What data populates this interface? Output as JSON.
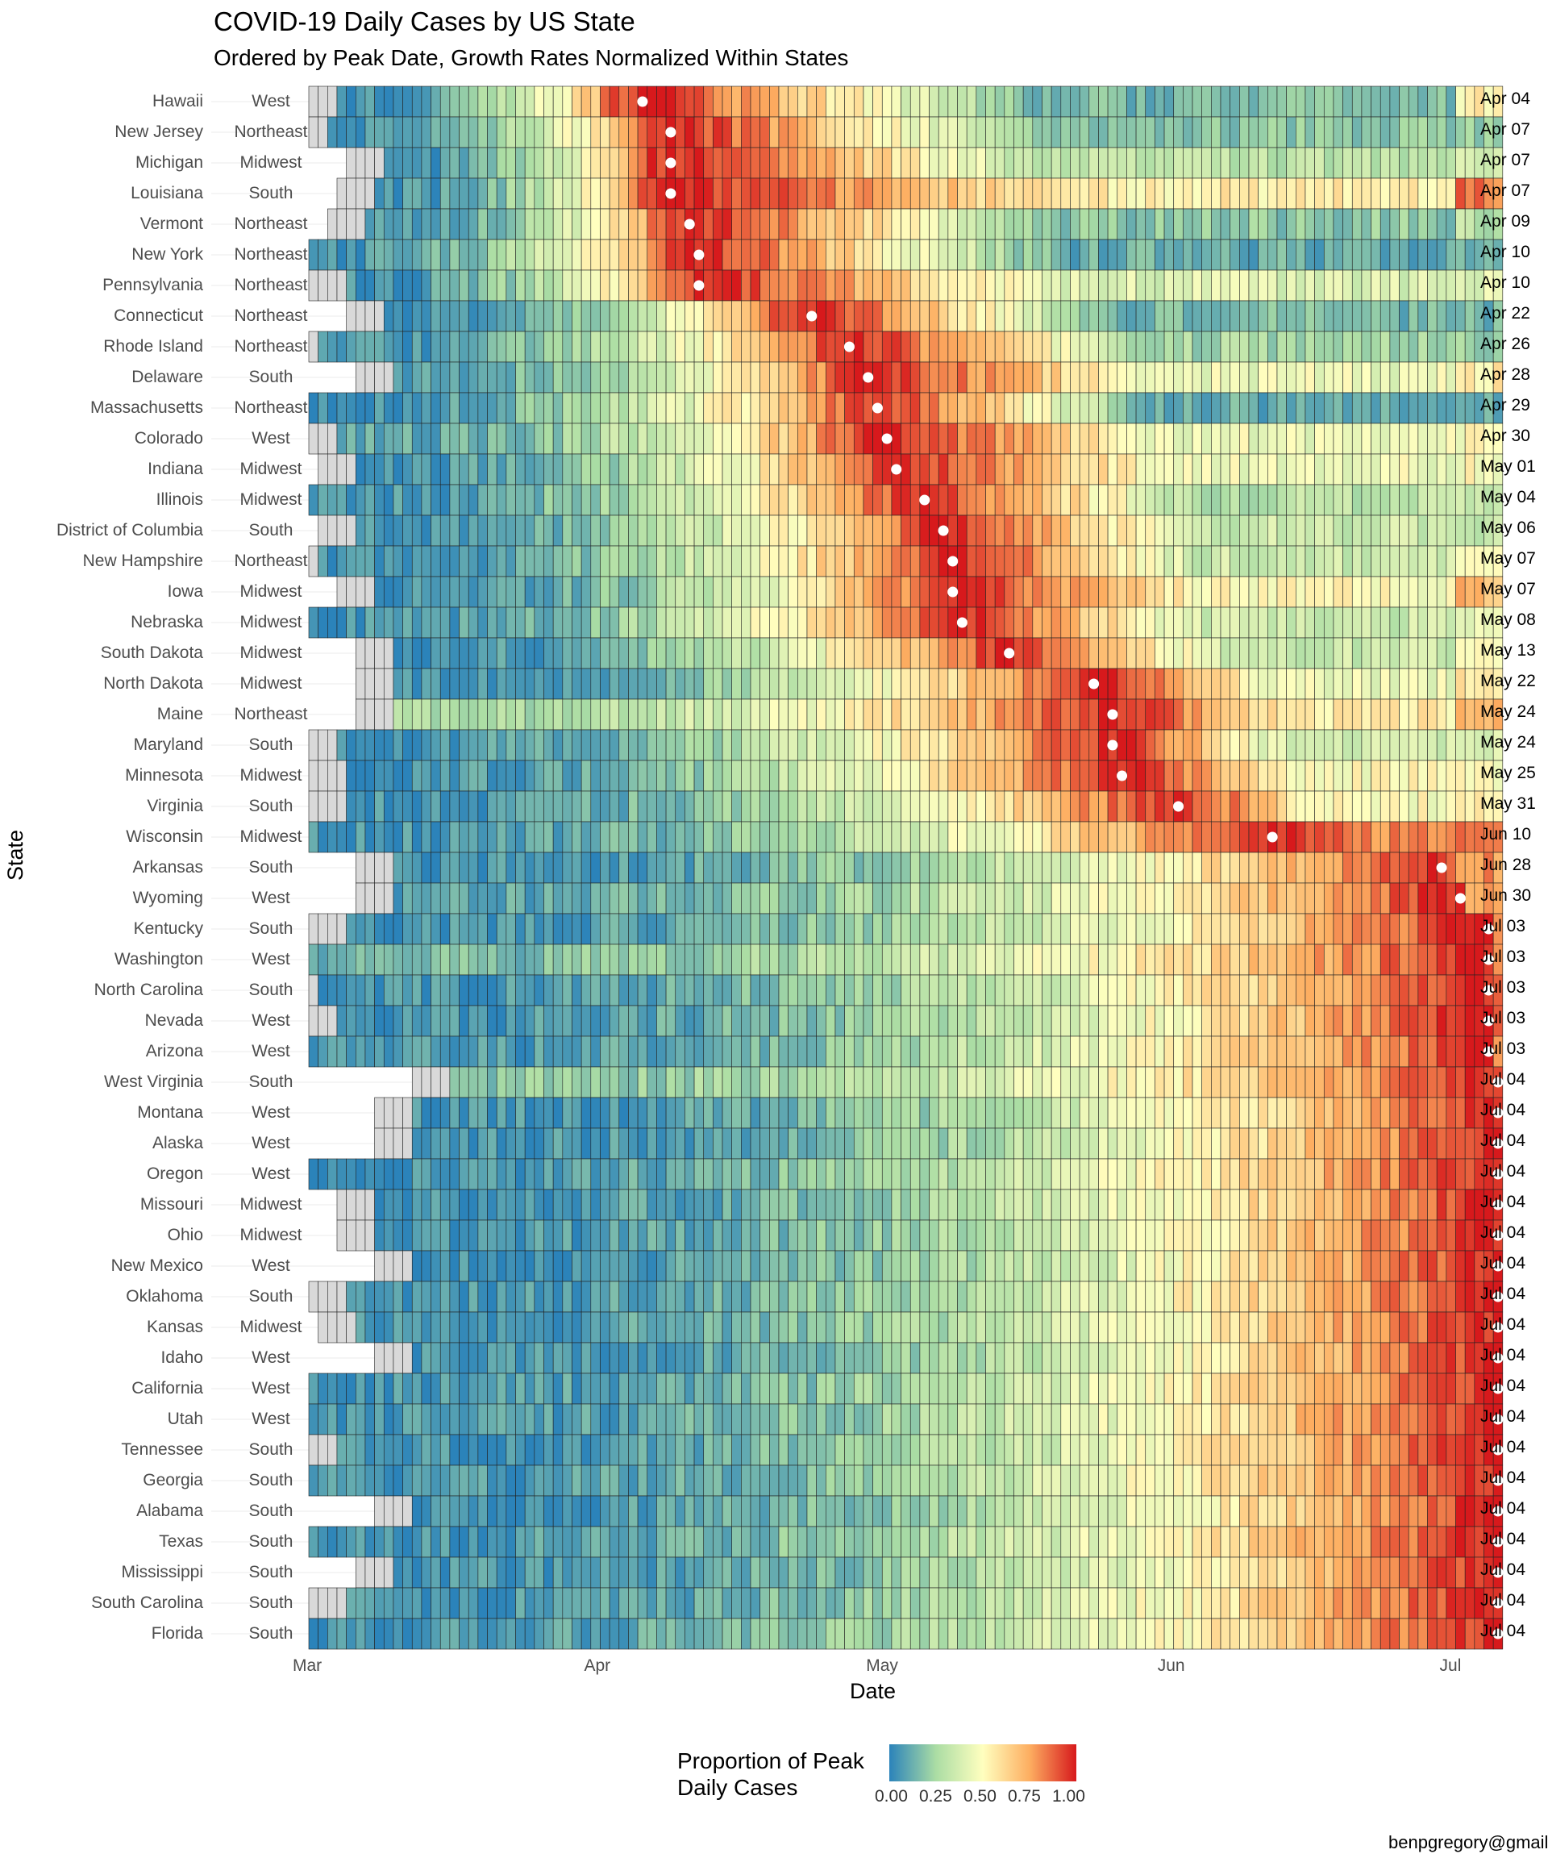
{
  "chart_data": {
    "type": "heatmap",
    "title": "COVID-19 Daily Cases by US State",
    "subtitle": "Ordered by Peak Date, Growth Rates Normalized Within States",
    "xlabel": "Date",
    "ylabel": "State",
    "x_ticks": [
      "Mar",
      "Apr",
      "May",
      "Jun",
      "Jul"
    ],
    "x_range": [
      "Feb 29",
      "Jul 04"
    ],
    "legend": {
      "title_line1": "Proportion of Peak",
      "title_line2": "Daily Cases",
      "ticks": [
        "0.00",
        "0.25",
        "0.50",
        "0.75",
        "1.00"
      ],
      "colors": [
        "#2b83ba",
        "#abdda4",
        "#ffffbf",
        "#fdae61",
        "#d7191c"
      ],
      "range": [
        0,
        1
      ]
    },
    "grey_color": "#d9d9d9",
    "rows": [
      {
        "state": "Hawaii",
        "region": "West",
        "peak": "Apr 04",
        "peak_day": 35,
        "first_case_day": 3,
        "start": 0.05,
        "late": 0.15,
        "end_value": 0.55
      },
      {
        "state": "New Jersey",
        "region": "Northeast",
        "peak": "Apr 07",
        "peak_day": 38,
        "first_case_day": 2,
        "start": 0.05,
        "late": 0.2,
        "end_value": 0.05
      },
      {
        "state": "Michigan",
        "region": "Midwest",
        "peak": "Apr 07",
        "peak_day": 38,
        "first_case_day": 8,
        "start": 0.05,
        "late": 0.3,
        "end_value": 0.35
      },
      {
        "state": "Louisiana",
        "region": "South",
        "peak": "Apr 07",
        "peak_day": 38,
        "first_case_day": 7,
        "start": 0.05,
        "late": 0.55,
        "end_value": 0.85
      },
      {
        "state": "Vermont",
        "region": "Northeast",
        "peak": "Apr 09",
        "peak_day": 40,
        "first_case_day": 6,
        "start": 0.05,
        "late": 0.2,
        "end_value": 0.3
      },
      {
        "state": "New York",
        "region": "Northeast",
        "peak": "Apr 10",
        "peak_day": 41,
        "first_case_day": 0,
        "start": 0.05,
        "late": 0.12,
        "end_value": 0.1
      },
      {
        "state": "Pennsylvania",
        "region": "Northeast",
        "peak": "Apr 10",
        "peak_day": 41,
        "first_case_day": 4,
        "start": 0.05,
        "late": 0.4,
        "end_value": 0.4
      },
      {
        "state": "Connecticut",
        "region": "Northeast",
        "peak": "Apr 22",
        "peak_day": 53,
        "first_case_day": 8,
        "start": 0.05,
        "late": 0.15,
        "end_value": 0.1
      },
      {
        "state": "Rhode Island",
        "region": "Northeast",
        "peak": "Apr 26",
        "peak_day": 57,
        "first_case_day": 1,
        "start": 0.05,
        "late": 0.25,
        "end_value": 0.25
      },
      {
        "state": "Delaware",
        "region": "South",
        "peak": "Apr 28",
        "peak_day": 59,
        "first_case_day": 9,
        "start": 0.1,
        "late": 0.45,
        "end_value": 0.55
      },
      {
        "state": "Massachusetts",
        "region": "Northeast",
        "peak": "Apr 29",
        "peak_day": 60,
        "first_case_day": 0,
        "start": 0.05,
        "late": 0.12,
        "end_value": 0.08
      },
      {
        "state": "Colorado",
        "region": "West",
        "peak": "Apr 30",
        "peak_day": 61,
        "first_case_day": 3,
        "start": 0.1,
        "late": 0.45,
        "end_value": 0.5
      },
      {
        "state": "Indiana",
        "region": "Midwest",
        "peak": "May 01",
        "peak_day": 62,
        "first_case_day": 5,
        "start": 0.05,
        "late": 0.45,
        "end_value": 0.5
      },
      {
        "state": "Illinois",
        "region": "Midwest",
        "peak": "May 04",
        "peak_day": 65,
        "first_case_day": 0,
        "start": 0.05,
        "late": 0.3,
        "end_value": 0.35
      },
      {
        "state": "District of Columbia",
        "region": "South",
        "peak": "May 06",
        "peak_day": 67,
        "first_case_day": 5,
        "start": 0.05,
        "late": 0.35,
        "end_value": 0.3
      },
      {
        "state": "New Hampshire",
        "region": "Northeast",
        "peak": "May 07",
        "peak_day": 68,
        "first_case_day": 1,
        "start": 0.05,
        "late": 0.35,
        "end_value": 0.45
      },
      {
        "state": "Iowa",
        "region": "Midwest",
        "peak": "May 07",
        "peak_day": 68,
        "first_case_day": 7,
        "start": 0.05,
        "late": 0.5,
        "end_value": 0.7
      },
      {
        "state": "Nebraska",
        "region": "Midwest",
        "peak": "May 08",
        "peak_day": 69,
        "first_case_day": 0,
        "start": 0.05,
        "late": 0.35,
        "end_value": 0.4
      },
      {
        "state": "South Dakota",
        "region": "Midwest",
        "peak": "May 13",
        "peak_day": 74,
        "first_case_day": 9,
        "start": 0.05,
        "late": 0.35,
        "end_value": 0.45
      },
      {
        "state": "North Dakota",
        "region": "Midwest",
        "peak": "May 22",
        "peak_day": 83,
        "first_case_day": 9,
        "start": 0.05,
        "late": 0.45,
        "end_value": 0.55
      },
      {
        "state": "Maine",
        "region": "Northeast",
        "peak": "May 24",
        "peak_day": 85,
        "first_case_day": 9,
        "start": 0.25,
        "late": 0.55,
        "end_value": 0.75
      },
      {
        "state": "Maryland",
        "region": "South",
        "peak": "May 24",
        "peak_day": 85,
        "first_case_day": 3,
        "start": 0.05,
        "late": 0.35,
        "end_value": 0.4
      },
      {
        "state": "Minnesota",
        "region": "Midwest",
        "peak": "May 25",
        "peak_day": 86,
        "first_case_day": 4,
        "start": 0.05,
        "late": 0.5,
        "end_value": 0.5
      },
      {
        "state": "Virginia",
        "region": "South",
        "peak": "May 31",
        "peak_day": 92,
        "first_case_day": 4,
        "start": 0.05,
        "late": 0.5,
        "end_value": 0.55
      },
      {
        "state": "Wisconsin",
        "region": "Midwest",
        "peak": "Jun 10",
        "peak_day": 102,
        "first_case_day": 0,
        "start": 0.05,
        "late": 0.8,
        "end_value": 0.85
      },
      {
        "state": "Arkansas",
        "region": "South",
        "peak": "Jun 28",
        "peak_day": 120,
        "first_case_day": 9,
        "start": 0.05,
        "late": 0.55,
        "end_value": 0.8
      },
      {
        "state": "Wyoming",
        "region": "West",
        "peak": "Jun 30",
        "peak_day": 122,
        "first_case_day": 9,
        "start": 0.1,
        "late": 0.5,
        "end_value": 0.75
      },
      {
        "state": "Kentucky",
        "region": "South",
        "peak": "Jul 03",
        "peak_day": 125,
        "first_case_day": 4,
        "start": 0.05,
        "late": 0.5,
        "end_value": 0.85
      },
      {
        "state": "Washington",
        "region": "West",
        "peak": "Jul 03",
        "peak_day": 125,
        "first_case_day": 0,
        "start": 0.15,
        "late": 0.5,
        "end_value": 0.85
      },
      {
        "state": "North Carolina",
        "region": "South",
        "peak": "Jul 03",
        "peak_day": 125,
        "first_case_day": 1,
        "start": 0.05,
        "late": 0.5,
        "end_value": 0.85
      },
      {
        "state": "Nevada",
        "region": "West",
        "peak": "Jul 03",
        "peak_day": 125,
        "first_case_day": 3,
        "start": 0.05,
        "late": 0.4,
        "end_value": 0.85
      },
      {
        "state": "Arizona",
        "region": "West",
        "peak": "Jul 03",
        "peak_day": 125,
        "first_case_day": 0,
        "start": 0.05,
        "late": 0.4,
        "end_value": 0.85
      },
      {
        "state": "West Virginia",
        "region": "South",
        "peak": "Jul 04",
        "peak_day": 126,
        "first_case_day": 15,
        "start": 0.2,
        "late": 0.55,
        "end_value": 0.85
      },
      {
        "state": "Montana",
        "region": "West",
        "peak": "Jul 04",
        "peak_day": 126,
        "first_case_day": 11,
        "start": 0.05,
        "late": 0.4,
        "end_value": 0.85
      },
      {
        "state": "Alaska",
        "region": "West",
        "peak": "Jul 04",
        "peak_day": 126,
        "first_case_day": 11,
        "start": 0.05,
        "late": 0.45,
        "end_value": 0.85
      },
      {
        "state": "Oregon",
        "region": "West",
        "peak": "Jul 04",
        "peak_day": 126,
        "first_case_day": 0,
        "start": 0.05,
        "late": 0.5,
        "end_value": 0.85
      },
      {
        "state": "Missouri",
        "region": "Midwest",
        "peak": "Jul 04",
        "peak_day": 126,
        "first_case_day": 7,
        "start": 0.05,
        "late": 0.5,
        "end_value": 0.85
      },
      {
        "state": "Ohio",
        "region": "Midwest",
        "peak": "Jul 04",
        "peak_day": 126,
        "first_case_day": 7,
        "start": 0.05,
        "late": 0.5,
        "end_value": 0.85
      },
      {
        "state": "New Mexico",
        "region": "West",
        "peak": "Jul 04",
        "peak_day": 126,
        "first_case_day": 11,
        "start": 0.05,
        "late": 0.55,
        "end_value": 0.85
      },
      {
        "state": "Oklahoma",
        "region": "South",
        "peak": "Jul 04",
        "peak_day": 126,
        "first_case_day": 4,
        "start": 0.05,
        "late": 0.45,
        "end_value": 0.85
      },
      {
        "state": "Kansas",
        "region": "Midwest",
        "peak": "Jul 04",
        "peak_day": 126,
        "first_case_day": 5,
        "start": 0.05,
        "late": 0.5,
        "end_value": 0.85
      },
      {
        "state": "Idaho",
        "region": "West",
        "peak": "Jul 04",
        "peak_day": 126,
        "first_case_day": 11,
        "start": 0.05,
        "late": 0.4,
        "end_value": 0.85
      },
      {
        "state": "California",
        "region": "West",
        "peak": "Jul 04",
        "peak_day": 126,
        "first_case_day": 0,
        "start": 0.05,
        "late": 0.45,
        "end_value": 0.85
      },
      {
        "state": "Utah",
        "region": "West",
        "peak": "Jul 04",
        "peak_day": 126,
        "first_case_day": 0,
        "start": 0.05,
        "late": 0.55,
        "end_value": 0.85
      },
      {
        "state": "Tennessee",
        "region": "South",
        "peak": "Jul 04",
        "peak_day": 126,
        "first_case_day": 3,
        "start": 0.05,
        "late": 0.45,
        "end_value": 0.85
      },
      {
        "state": "Georgia",
        "region": "South",
        "peak": "Jul 04",
        "peak_day": 126,
        "first_case_day": 0,
        "start": 0.05,
        "late": 0.5,
        "end_value": 0.85
      },
      {
        "state": "Alabama",
        "region": "South",
        "peak": "Jul 04",
        "peak_day": 126,
        "first_case_day": 11,
        "start": 0.05,
        "late": 0.55,
        "end_value": 0.85
      },
      {
        "state": "Texas",
        "region": "South",
        "peak": "Jul 04",
        "peak_day": 126,
        "first_case_day": 0,
        "start": 0.05,
        "late": 0.5,
        "end_value": 0.85
      },
      {
        "state": "Mississippi",
        "region": "South",
        "peak": "Jul 04",
        "peak_day": 126,
        "first_case_day": 9,
        "start": 0.05,
        "late": 0.5,
        "end_value": 0.85
      },
      {
        "state": "South Carolina",
        "region": "South",
        "peak": "Jul 04",
        "peak_day": 126,
        "first_case_day": 4,
        "start": 0.05,
        "late": 0.4,
        "end_value": 0.85
      },
      {
        "state": "Florida",
        "region": "South",
        "peak": "Jul 04",
        "peak_day": 126,
        "first_case_day": 0,
        "start": 0.05,
        "late": 0.45,
        "end_value": 0.85
      }
    ]
  },
  "credit": "benpgregory@gmail.com"
}
